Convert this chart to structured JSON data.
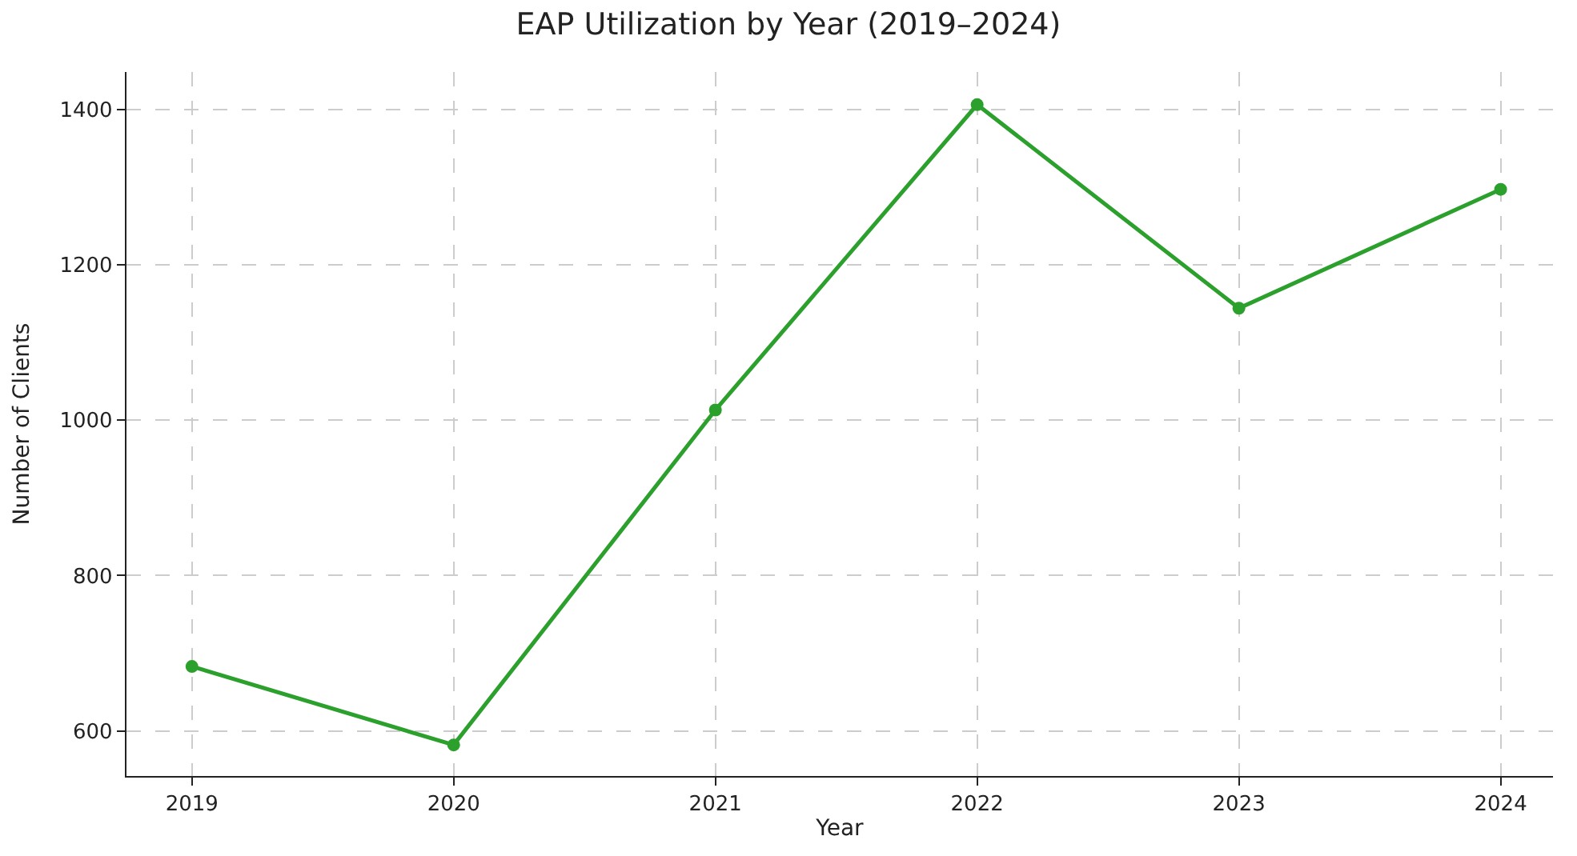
{
  "chart_data": {
    "type": "line",
    "title": "EAP Utilization by Year (2019–2024)",
    "xlabel": "Year",
    "ylabel": "Number of Clients",
    "x": [
      2019,
      2020,
      2021,
      2022,
      2023,
      2024
    ],
    "series": [
      {
        "color": "#2ca02c",
        "values": [
          683,
          582,
          1013,
          1406,
          1144,
          1297
        ]
      }
    ],
    "xlim": [
      2018.75,
      2024.2
    ],
    "xticks": [
      2019,
      2020,
      2021,
      2022,
      2023,
      2024
    ],
    "ylim": [
      542,
      1448
    ],
    "yticks": [
      600,
      800,
      1000,
      1200,
      1400
    ],
    "grid": true,
    "marker": "circle",
    "line_style": "solid",
    "legend": false
  }
}
